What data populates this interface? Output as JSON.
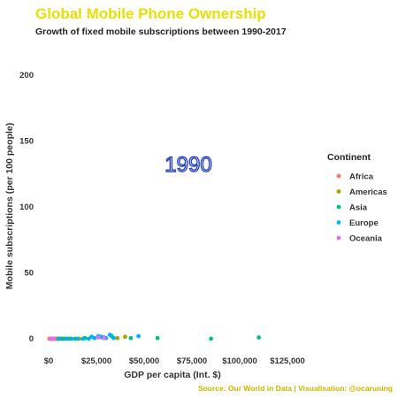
{
  "chart_data": {
    "type": "scatter",
    "title": "Global Mobile Phone Ownership",
    "subtitle": "Growth of fixed mobile subscriptions between 1990-2017",
    "xlabel": "GDP per capita (Int. $)",
    "ylabel": "Mobile subscriptions (per 100 people)",
    "xlim": [
      0,
      125000
    ],
    "ylim": [
      0,
      200
    ],
    "x_ticks": [
      0,
      25000,
      50000,
      75000,
      100000,
      125000
    ],
    "x_tick_labels": [
      "$0",
      "$25,000",
      "$50,000",
      "$75,000",
      "$100,000",
      "$125,000"
    ],
    "y_ticks": [
      0,
      50,
      100,
      150,
      200
    ],
    "y_tick_labels": [
      "0",
      "50",
      "100",
      "150",
      "200"
    ],
    "year_label": "1990",
    "legend": {
      "title": "Continent",
      "placement": "right",
      "entries": [
        {
          "name": "Africa",
          "color": "#f8766d"
        },
        {
          "name": "Americas",
          "color": "#a3a500"
        },
        {
          "name": "Asia",
          "color": "#00bf7d"
        },
        {
          "name": "Europe",
          "color": "#00b0f6"
        },
        {
          "name": "Oceania",
          "color": "#e76bf3"
        }
      ]
    },
    "series": [
      {
        "name": "Africa",
        "points": [
          [
            400,
            0
          ],
          [
            800,
            0
          ],
          [
            1200,
            0
          ],
          [
            1600,
            0
          ],
          [
            2000,
            0
          ],
          [
            2600,
            0
          ],
          [
            3200,
            0
          ],
          [
            4000,
            0
          ],
          [
            5000,
            0
          ],
          [
            6000,
            0
          ],
          [
            7500,
            0
          ],
          [
            9000,
            0
          ]
        ]
      },
      {
        "name": "Americas",
        "points": [
          [
            2500,
            0
          ],
          [
            4500,
            0
          ],
          [
            6000,
            0
          ],
          [
            8000,
            0
          ],
          [
            10000,
            0
          ],
          [
            12000,
            0
          ],
          [
            16000,
            0
          ],
          [
            36000,
            0.5
          ],
          [
            40000,
            1.5
          ]
        ]
      },
      {
        "name": "Asia",
        "points": [
          [
            1500,
            0
          ],
          [
            3000,
            0
          ],
          [
            5000,
            0
          ],
          [
            7000,
            0
          ],
          [
            11000,
            0
          ],
          [
            14000,
            0
          ],
          [
            19000,
            0.5
          ],
          [
            28000,
            1
          ],
          [
            33000,
            2
          ],
          [
            43000,
            0.5
          ],
          [
            57000,
            0.5
          ],
          [
            85000,
            0
          ],
          [
            110000,
            1
          ]
        ]
      },
      {
        "name": "Europe",
        "points": [
          [
            6000,
            0
          ],
          [
            9000,
            0
          ],
          [
            12000,
            0
          ],
          [
            15000,
            0
          ],
          [
            18000,
            0
          ],
          [
            21000,
            0
          ],
          [
            22500,
            1.5
          ],
          [
            24000,
            0.5
          ],
          [
            26000,
            2
          ],
          [
            27500,
            1.5
          ],
          [
            29000,
            1
          ],
          [
            30000,
            0.5
          ],
          [
            32000,
            3
          ],
          [
            34000,
            0.5
          ],
          [
            47000,
            2
          ]
        ]
      },
      {
        "name": "Oceania",
        "points": [
          [
            1500,
            0
          ],
          [
            3000,
            0
          ],
          [
            26000,
            1
          ],
          [
            29000,
            0.5
          ]
        ]
      }
    ],
    "grid": false,
    "caption": "Source: Our World in Data | Visualisation: @ocaruning"
  }
}
